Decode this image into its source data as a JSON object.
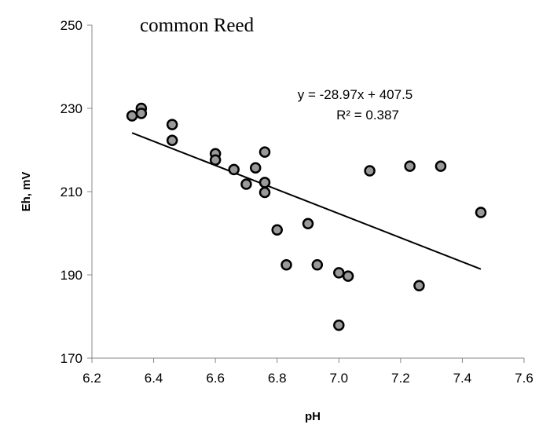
{
  "chart_data": {
    "type": "scatter",
    "title": "common Reed",
    "xlabel": "pH",
    "ylabel": "Eh, mV",
    "xlim": [
      6.2,
      7.6
    ],
    "ylim": [
      170,
      250
    ],
    "x_ticks": [
      6.2,
      6.4,
      6.6,
      6.8,
      7.0,
      7.2,
      7.4,
      7.6
    ],
    "x_tick_labels": [
      "6.2",
      "6.4",
      "6.6",
      "6.8",
      "7.0",
      "7.2",
      "7.4",
      "7.6"
    ],
    "y_ticks": [
      170,
      190,
      210,
      230,
      250
    ],
    "y_tick_labels": [
      "170",
      "190",
      "210",
      "230",
      "250"
    ],
    "grid": false,
    "legend": "none",
    "point_color": "#999999",
    "point_edge_color": "#000000",
    "series": [
      {
        "x": [
          6.33,
          6.36,
          6.36,
          6.46,
          6.46,
          6.6,
          6.6,
          6.66,
          6.7,
          6.73,
          6.76,
          6.76,
          6.76,
          6.8,
          6.83,
          6.9,
          6.93,
          7.0,
          7.0,
          7.03,
          7.1,
          7.23,
          7.26,
          7.33,
          7.46
        ],
        "y": [
          228.2,
          230.0,
          228.8,
          226.1,
          222.3,
          219.1,
          217.6,
          215.3,
          211.8,
          215.7,
          219.5,
          212.2,
          209.8,
          200.8,
          192.4,
          202.3,
          192.4,
          190.5,
          177.9,
          189.7,
          215.0,
          216.1,
          187.4,
          216.1,
          205.0
        ]
      }
    ],
    "trendline": {
      "slope": -28.97,
      "intercept": 407.5,
      "x_range": [
        6.33,
        7.46
      ],
      "equation_text": "y = -28.97x + 407.5",
      "r2_text": "R² = 0.387"
    }
  }
}
